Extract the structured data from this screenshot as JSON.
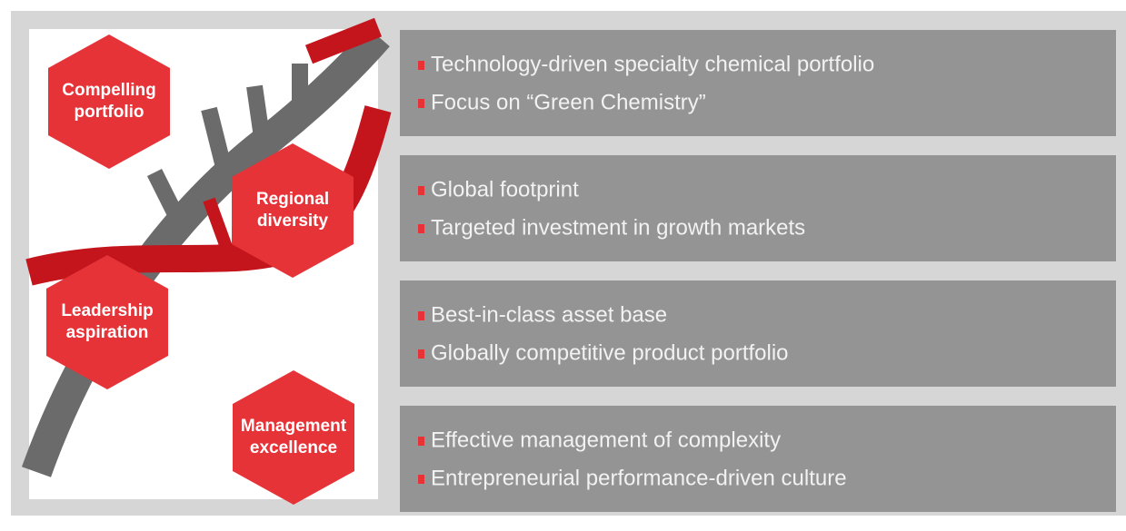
{
  "hexagons": [
    {
      "lines": [
        "Compelling",
        "portfolio"
      ]
    },
    {
      "lines": [
        "Regional",
        "diversity"
      ]
    },
    {
      "lines": [
        "Leadership",
        "aspiration"
      ]
    },
    {
      "lines": [
        "Management",
        "excellence"
      ]
    }
  ],
  "panels": [
    {
      "bullets": [
        "Technology-driven specialty chemical portfolio",
        "Focus on “Green Chemistry”"
      ]
    },
    {
      "bullets": [
        "Global footprint",
        "Targeted investment in growth markets"
      ]
    },
    {
      "bullets": [
        "Best-in-class asset base",
        "Globally competitive product portfolio"
      ]
    },
    {
      "bullets": [
        "Effective management of complexity",
        "Entrepreneurial performance-driven culture"
      ]
    }
  ]
}
